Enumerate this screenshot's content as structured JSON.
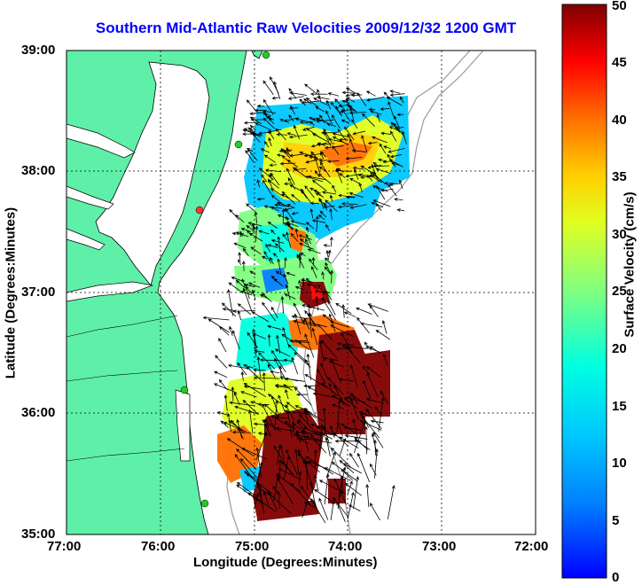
{
  "map": {
    "title": "Southern Mid-Atlantic Raw Velocities 2009/12/32 1200 GMT",
    "xlabel": "Longitude (Degrees:Minutes)",
    "ylabel": "Latitude (Degrees:Minutes)",
    "xticks": [
      "77:00",
      "76:00",
      "75:00",
      "74:00",
      "73:00",
      "72:00"
    ],
    "yticks": [
      "35:00",
      "36:00",
      "37:00",
      "38:00",
      "39:00"
    ],
    "land_color": "#5ef0a8",
    "grid": "dotted"
  },
  "colorbar": {
    "label": "Surface Velocity (cm/s)",
    "ticks": [
      "0",
      "5",
      "10",
      "15",
      "20",
      "25",
      "30",
      "35",
      "40",
      "45",
      "50"
    ],
    "range": [
      0,
      50
    ],
    "colormap": "jet"
  },
  "icons": {
    "station": "station-marker-icon",
    "arrow": "velocity-arrow-icon"
  },
  "colors": {
    "title": "#0000ff",
    "station": "#22cc22",
    "station_alt": "#ff3333"
  }
}
